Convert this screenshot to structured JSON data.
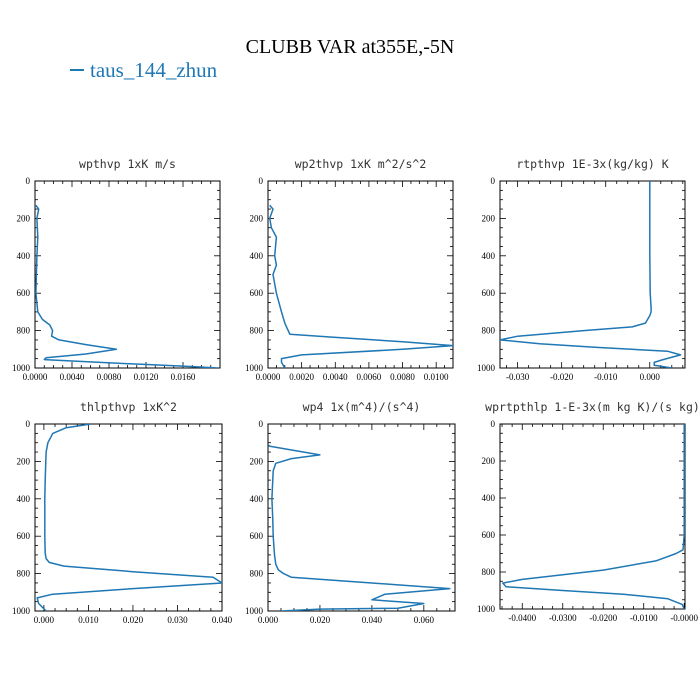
{
  "title": "CLUBB VAR at355E,-5N",
  "legend": {
    "label": "taus_144_zhun",
    "color": "#1f77b4"
  },
  "chart_data": [
    {
      "type": "line",
      "title": "wpthvp   1xK m/s",
      "xlim": [
        0,
        0.02
      ],
      "ylim": [
        1000,
        0
      ],
      "xticks": [
        "0.0000",
        "0.0040",
        "0.0080",
        "0.0120",
        "0.0160"
      ],
      "xtick_values": [
        0,
        0.004,
        0.008,
        0.012,
        0.016
      ],
      "yticks": [
        "0",
        "200",
        "400",
        "600",
        "800",
        "1000"
      ],
      "series": [
        {
          "color": "#1f77b4",
          "x": [
            0.0001,
            0.0004,
            0.0002,
            0.0003,
            0.0002,
            0.0001,
            0.0003,
            0.0008,
            0.0016,
            0.0019,
            0.0018,
            0.0026,
            0.0055,
            0.0088,
            0.0055,
            0.0012,
            0.001,
            0.009,
            0.016,
            0.0198
          ],
          "y": [
            130,
            150,
            200,
            300,
            400,
            600,
            700,
            740,
            770,
            800,
            830,
            850,
            875,
            900,
            925,
            945,
            955,
            975,
            990,
            1000
          ]
        }
      ]
    },
    {
      "type": "line",
      "title": "wp2thvp   1xK m^2/s^2",
      "xlim": [
        0,
        0.011
      ],
      "ylim": [
        1000,
        0
      ],
      "xticks": [
        "0.0000",
        "0.0020",
        "0.0040",
        "0.0060",
        "0.0080",
        "0.0100"
      ],
      "xtick_values": [
        0,
        0.002,
        0.004,
        0.006,
        0.008,
        0.01
      ],
      "yticks": [
        "0",
        "200",
        "400",
        "600",
        "800",
        "1000"
      ],
      "series": [
        {
          "color": "#1f77b4",
          "x": [
            0.0001,
            0.0003,
            0.0001,
            0.0002,
            0.0005,
            0.0004,
            0.0005,
            0.0003,
            0.0005,
            0.0008,
            0.001,
            0.0011,
            0.0012,
            0.0013,
            0.0038,
            0.008,
            0.011,
            0.008,
            0.002,
            0.0008,
            0.0008,
            0.001
          ],
          "y": [
            130,
            150,
            200,
            250,
            300,
            400,
            450,
            500,
            600,
            700,
            760,
            780,
            800,
            820,
            835,
            860,
            880,
            900,
            930,
            950,
            970,
            1000
          ]
        }
      ]
    },
    {
      "type": "line",
      "title": "rtpthvp   1E-3x(kg/kg) K",
      "xlim": [
        -0.034,
        0.008
      ],
      "ylim": [
        1000,
        0
      ],
      "xticks": [
        "-0.030",
        "-0.020",
        "-0.010",
        "0.000"
      ],
      "xtick_values": [
        -0.03,
        -0.02,
        -0.01,
        0
      ],
      "yticks": [
        "0",
        "200",
        "400",
        "600",
        "800",
        "1000"
      ],
      "series": [
        {
          "color": "#1f77b4",
          "x": [
            0,
            0,
            0,
            0.0001,
            0.0003,
            0.0003,
            0,
            -0.0005,
            -0.001,
            -0.004,
            -0.015,
            -0.03,
            -0.034,
            -0.025,
            -0.012,
            0.004,
            0.007,
            0.003,
            0.001,
            0.001,
            0.005
          ],
          "y": [
            0,
            200,
            400,
            600,
            680,
            700,
            720,
            740,
            760,
            780,
            800,
            830,
            850,
            870,
            890,
            910,
            930,
            955,
            970,
            985,
            1000
          ]
        }
      ]
    },
    {
      "type": "line",
      "title": "thlpthvp   1xK^2",
      "xlim": [
        -0.002,
        0.04
      ],
      "ylim": [
        1000,
        0
      ],
      "xticks": [
        "0.000",
        "0.010",
        "0.020",
        "0.030",
        "0.040"
      ],
      "xtick_values": [
        0,
        0.01,
        0.02,
        0.03,
        0.04
      ],
      "yticks": [
        "0",
        "200",
        "400",
        "600",
        "800",
        "1000"
      ],
      "series": [
        {
          "color": "#1f77b4",
          "x": [
            0.0105,
            0.005,
            0.002,
            0.0009,
            0.0005,
            0.0003,
            0.0002,
            0.0002,
            0.0002,
            0.0003,
            0.0005,
            0.0012,
            0.0045,
            0.02,
            0.038,
            0.04,
            0.02,
            0.002,
            -0.0015,
            -0.0012,
            0.0005
          ],
          "y": [
            0,
            20,
            50,
            100,
            150,
            300,
            400,
            500,
            600,
            690,
            720,
            740,
            760,
            790,
            820,
            850,
            880,
            910,
            930,
            960,
            1000
          ]
        }
      ]
    },
    {
      "type": "line",
      "title": "wp4   1x(m^4)/(s^4)",
      "xlim": [
        0,
        0.072
      ],
      "ylim": [
        1000,
        0
      ],
      "xticks": [
        "0.000",
        "0.020",
        "0.040",
        "0.060"
      ],
      "xtick_values": [
        0,
        0.02,
        0.04,
        0.06
      ],
      "yticks": [
        "0",
        "200",
        "400",
        "600",
        "800",
        "1000"
      ],
      "series": [
        {
          "color": "#1f77b4",
          "x": [
            0.0002,
            0.001,
            0.02,
            0.009,
            0.003,
            0.002,
            0.0015,
            0.0018,
            0.002,
            0.0025,
            0.003,
            0.004,
            0.006,
            0.009,
            0.04,
            0.07,
            0.045,
            0.04,
            0.06,
            0.05,
            0.02,
            0.005
          ],
          "y": [
            115,
            120,
            165,
            185,
            210,
            250,
            400,
            500,
            600,
            700,
            750,
            780,
            800,
            820,
            850,
            880,
            910,
            940,
            960,
            985,
            990,
            1000
          ]
        }
      ]
    },
    {
      "type": "line",
      "title": "wprtpthlp   1-E-3x(m kg K)/(s kg)",
      "xlim": [
        -0.0455,
        0.0002
      ],
      "ylim": [
        1000,
        0
      ],
      "xticks": [
        "-0.0400",
        "-0.0300",
        "-0.0200",
        "-0.0100",
        "-0.0000"
      ],
      "xtick_values": [
        -0.04,
        -0.03,
        -0.02,
        -0.01,
        0
      ],
      "yticks": [
        "0",
        "200",
        "400",
        "600",
        "800",
        "1000"
      ],
      "series": [
        {
          "color": "#1f77b4",
          "x": [
            0,
            0,
            0,
            0,
            -0.0003,
            -0.002,
            -0.007,
            -0.02,
            -0.04,
            -0.0448,
            -0.044,
            -0.03,
            -0.015,
            -0.004,
            -0.0005,
            0
          ],
          "y": [
            0,
            200,
            400,
            600,
            680,
            700,
            740,
            790,
            840,
            860,
            880,
            900,
            920,
            945,
            975,
            1000
          ]
        }
      ]
    }
  ]
}
